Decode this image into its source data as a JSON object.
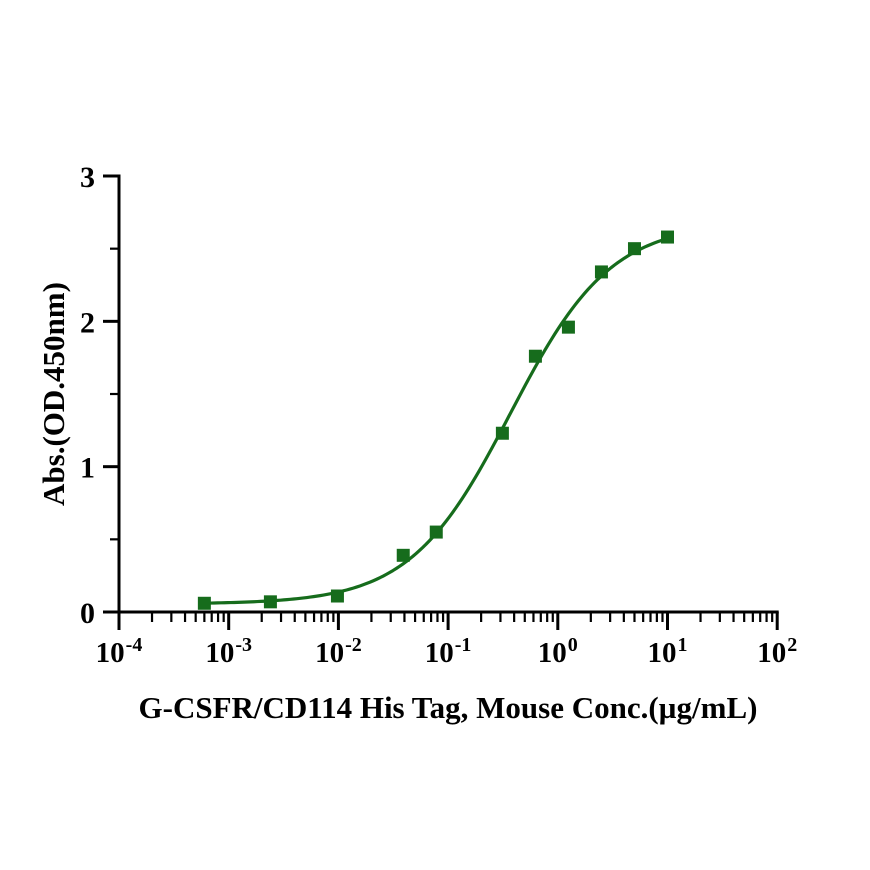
{
  "chart_data": {
    "type": "scatter",
    "title": "",
    "xlabel": "G-CSFR/CD114 His Tag, Mouse Conc.(µg/mL)",
    "ylabel": "Abs.(OD.450nm)",
    "x_scale": "log10",
    "xlim_log": [
      -4,
      2
    ],
    "x_tick_base": "10",
    "x_tick_exponents": [
      "-4",
      "-3",
      "-2",
      "-1",
      "0",
      "1",
      "2"
    ],
    "ylim": [
      0,
      3
    ],
    "y_major_ticks": [
      0,
      1,
      2,
      3
    ],
    "y_minor_ticks": [
      0.5,
      1.5,
      2.5
    ],
    "grid": false,
    "legend": "none",
    "colors": {
      "series": "#166c1c",
      "axis": "#000000",
      "text": "#000000",
      "background": "#ffffff"
    },
    "series": [
      {
        "name": "G-CSFR/CD114 His Tag, Mouse",
        "marker": "square",
        "marker_size_px": 13,
        "points": [
          {
            "x": 0.0006,
            "y": 0.06
          },
          {
            "x": 0.0024,
            "y": 0.07
          },
          {
            "x": 0.0098,
            "y": 0.11
          },
          {
            "x": 0.039,
            "y": 0.39
          },
          {
            "x": 0.078,
            "y": 0.55
          },
          {
            "x": 0.3125,
            "y": 1.23
          },
          {
            "x": 0.625,
            "y": 1.76
          },
          {
            "x": 1.25,
            "y": 1.96
          },
          {
            "x": 2.5,
            "y": 2.34
          },
          {
            "x": 5,
            "y": 2.5
          },
          {
            "x": 10,
            "y": 2.58
          }
        ],
        "fit_curve": {
          "model": "4PL",
          "bottom": 0.055,
          "top": 2.68,
          "ec50": 0.37,
          "hill": 0.95,
          "x_start": 0.0006,
          "x_end": 10
        }
      }
    ]
  }
}
